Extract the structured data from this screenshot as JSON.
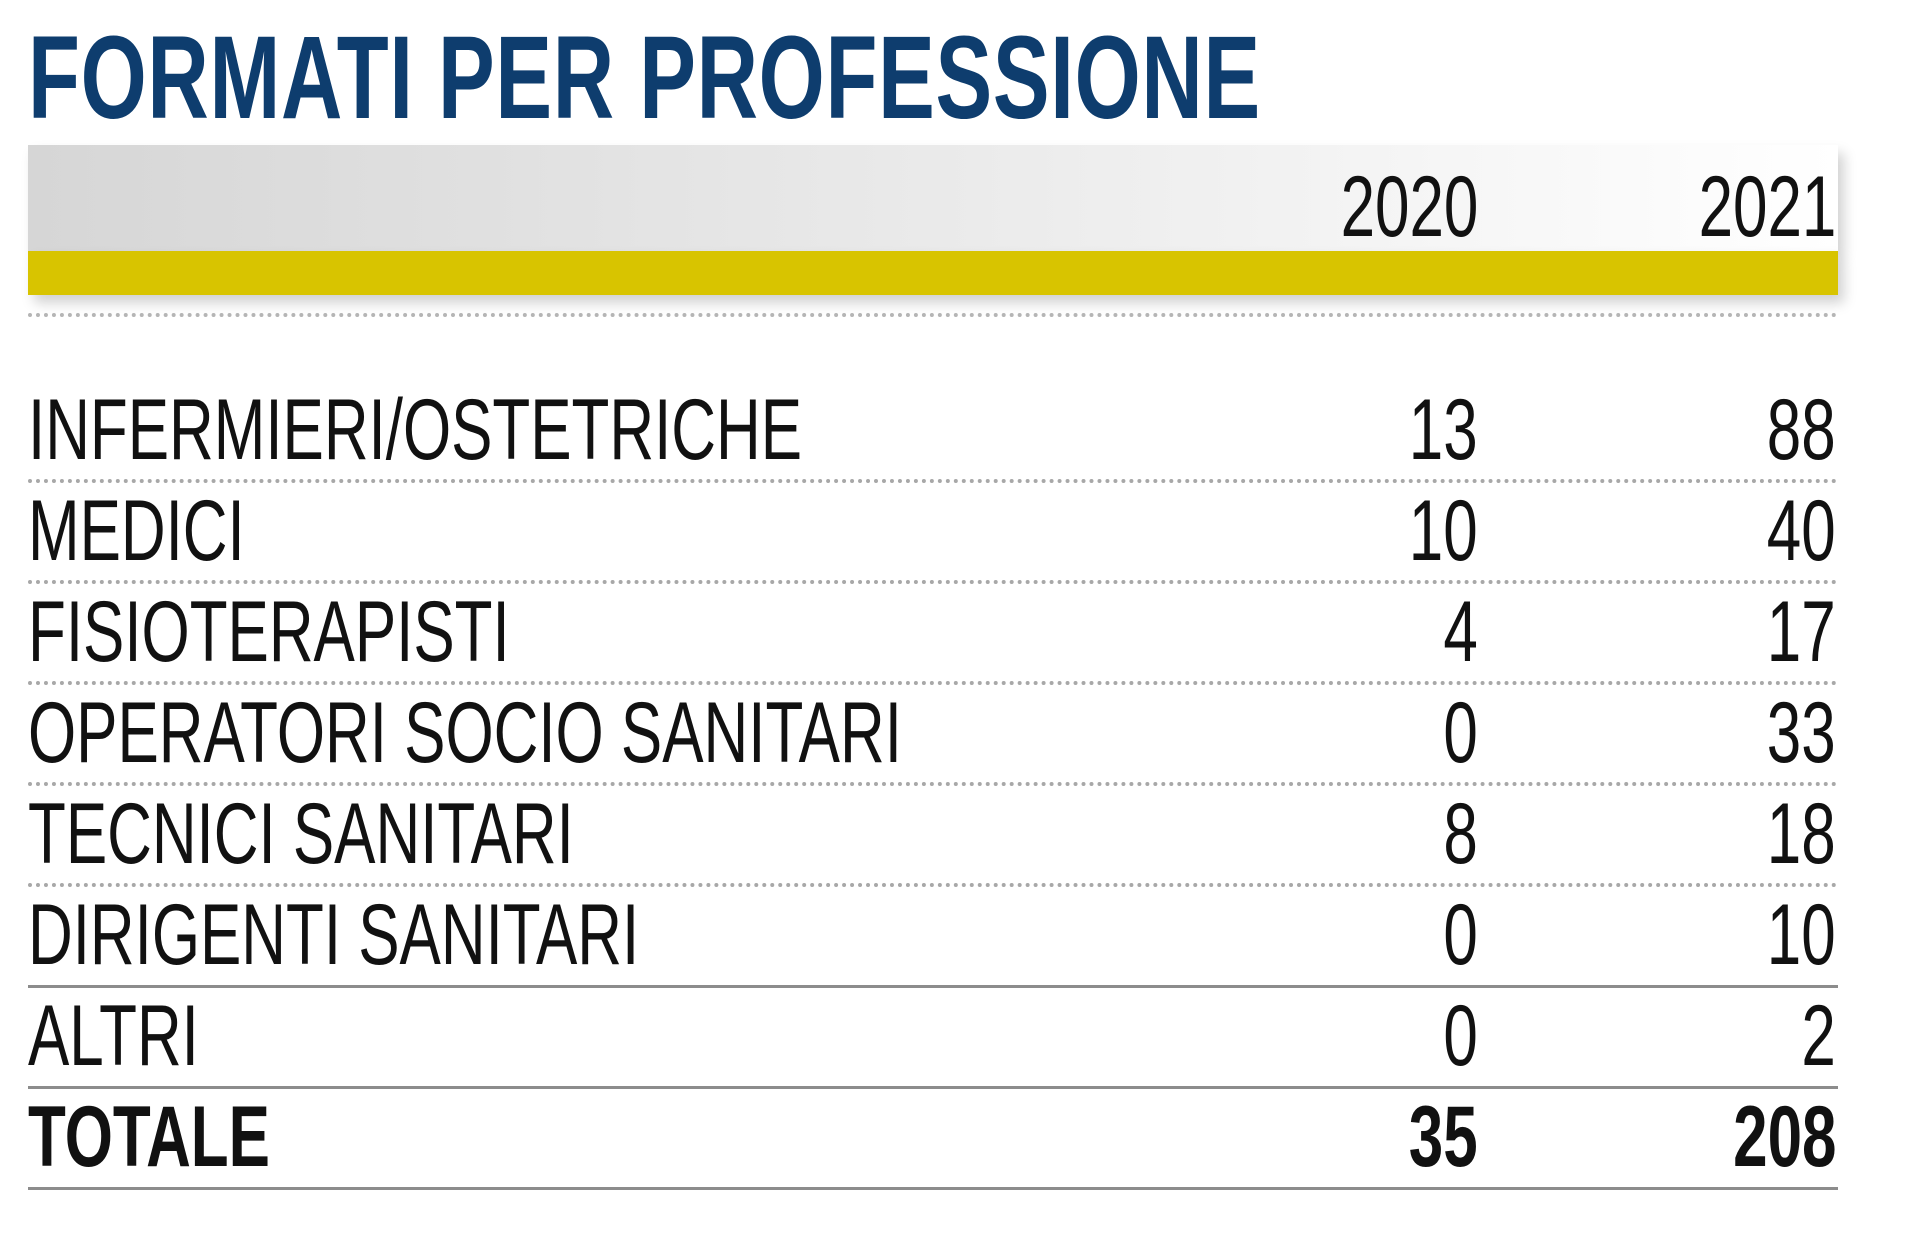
{
  "title": "FORMATI PER PROFESSIONE",
  "colors": {
    "title": "#0e3d6e",
    "accent_bar": "#d8c400",
    "header_band": "#e4e4e4",
    "text": "#111111"
  },
  "header": {
    "col_2020": "2020",
    "col_2021": "2021"
  },
  "rows": [
    {
      "label": "INFERMIERI/OSTETRICHE",
      "v2020": "13",
      "v2021": "88"
    },
    {
      "label": "MEDICI",
      "v2020": "10",
      "v2021": "40"
    },
    {
      "label": "FISIOTERAPISTI",
      "v2020": "4",
      "v2021": "17"
    },
    {
      "label": "OPERATORI SOCIO SANITARI",
      "v2020": "0",
      "v2021": "33"
    },
    {
      "label": "TECNICI SANITARI",
      "v2020": "8",
      "v2021": "18"
    },
    {
      "label": "DIRIGENTI SANITARI",
      "v2020": "0",
      "v2021": "10"
    },
    {
      "label": "ALTRI",
      "v2020": "0",
      "v2021": "2"
    }
  ],
  "total": {
    "label": "TOTALE",
    "v2020": "35",
    "v2021": "208"
  },
  "chart_data": {
    "type": "table",
    "title": "FORMATI PER PROFESSIONE",
    "columns": [
      "2020",
      "2021"
    ],
    "categories": [
      "INFERMIERI/OSTETRICHE",
      "MEDICI",
      "FISIOTERAPISTI",
      "OPERATORI SOCIO SANITARI",
      "TECNICI SANITARI",
      "DIRIGENTI SANITARI",
      "ALTRI",
      "TOTALE"
    ],
    "series": [
      {
        "name": "2020",
        "values": [
          13,
          10,
          4,
          0,
          8,
          0,
          0,
          35
        ]
      },
      {
        "name": "2021",
        "values": [
          88,
          40,
          17,
          33,
          18,
          10,
          2,
          208
        ]
      }
    ]
  }
}
